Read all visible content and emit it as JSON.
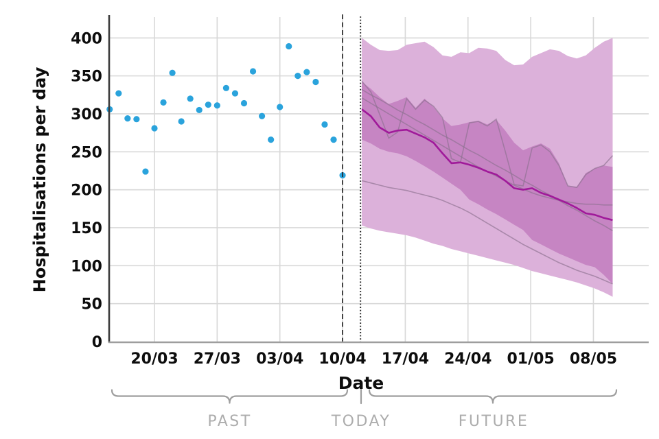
{
  "axes": {
    "y_label": "Hospitalisations per day",
    "x_label": "Date",
    "y_ticks": [
      0,
      50,
      100,
      150,
      200,
      250,
      300,
      350,
      400
    ],
    "x_ticks": [
      {
        "label": "20/03",
        "day": 5
      },
      {
        "label": "27/03",
        "day": 12
      },
      {
        "label": "03/04",
        "day": 19
      },
      {
        "label": "10/04",
        "day": 26
      },
      {
        "label": "17/04",
        "day": 33
      },
      {
        "label": "24/04",
        "day": 40
      },
      {
        "label": "01/05",
        "day": 47
      },
      {
        "label": "08/05",
        "day": 54
      }
    ],
    "y_range": [
      0,
      427
    ]
  },
  "annotations": {
    "past": "PAST",
    "today": "TODAY",
    "future": "FUTURE"
  },
  "colors": {
    "observed_point": "#2aa3dc",
    "outer_band": "#dcb1da",
    "inner_band": "#c685c3",
    "median_line": "#a01a9a",
    "trajectory_line": "#8d7190",
    "reference_line": "#262626",
    "gridline": "#d8d8d8",
    "axis_spine": "#3d3d3d",
    "bottom_axis": "#9e9e9e",
    "annotation_text": "#adadad",
    "brace": "#9e9e9e",
    "axis_text": "#0d0d0d"
  },
  "chart_data": {
    "type": "scatter+area-forecast",
    "x_unit": "days",
    "day0_date": "15/03",
    "grid": "on",
    "observed": {
      "name": "observed hospitalisations",
      "start_day": 0,
      "start_date": "15/03",
      "end_date": "10/04",
      "values": [
        306,
        327,
        294,
        293,
        224,
        281,
        315,
        354,
        290,
        320,
        305,
        312,
        311,
        334,
        327,
        314,
        356,
        297,
        266,
        309,
        389,
        350,
        355,
        342,
        286,
        266,
        219
      ]
    },
    "forecast": {
      "name": "forecast fan",
      "start_day": 28,
      "start_date": "12/04",
      "end_date": "10/05",
      "outer_band_top": [
        400,
        391,
        384,
        383,
        384,
        391,
        393,
        395,
        388,
        377,
        375,
        381,
        380,
        387,
        386,
        383,
        371,
        364,
        365,
        375,
        380,
        385,
        383,
        376,
        373,
        377,
        387,
        395,
        400
      ],
      "inner_band_top": [
        342,
        333,
        322,
        313,
        317,
        322,
        308,
        320,
        309,
        294,
        284,
        286,
        289,
        291,
        286,
        292,
        278,
        262,
        252,
        257,
        261,
        254,
        235,
        205,
        204,
        222,
        228,
        232,
        230
      ],
      "median": [
        306,
        297,
        282,
        275,
        278,
        279,
        274,
        269,
        262,
        248,
        235,
        236,
        233,
        229,
        224,
        220,
        212,
        202,
        200,
        202,
        196,
        192,
        187,
        182,
        176,
        169,
        167,
        163,
        160
      ],
      "inner_band_bottom": [
        266,
        261,
        254,
        250,
        248,
        244,
        238,
        231,
        224,
        216,
        208,
        200,
        187,
        181,
        174,
        168,
        161,
        154,
        147,
        134,
        128,
        122,
        116,
        111,
        106,
        101,
        98,
        88,
        76
      ],
      "outer_band_bottom": [
        153,
        149,
        146,
        144,
        142,
        140,
        137,
        133,
        129,
        126,
        122,
        119,
        116,
        113,
        110,
        107,
        104,
        101,
        97,
        93,
        90,
        87,
        84,
        81,
        78,
        74,
        70,
        65,
        59
      ],
      "trajectories": [
        [
          332,
          325,
          319,
          312,
          305,
          299,
          292,
          286,
          279,
          272,
          266,
          259,
          252,
          246,
          239,
          232,
          226,
          219,
          212,
          206,
          199,
          193,
          186,
          179,
          173,
          166,
          159,
          153,
          146
        ],
        [
          343,
          329,
          299,
          268,
          276,
          320,
          306,
          318,
          310,
          295,
          241,
          236,
          288,
          290,
          284,
          293,
          251,
          207,
          205,
          255,
          259,
          250,
          232,
          205,
          203,
          220,
          228,
          232,
          245
        ],
        [
          321,
          314,
          307,
          300,
          293,
          286,
          279,
          272,
          265,
          258,
          251,
          244,
          237,
          230,
          224,
          218,
          212,
          206,
          201,
          196,
          192,
          189,
          186,
          184,
          182,
          181,
          181,
          180,
          180
        ],
        [
          212,
          209,
          206,
          203,
          201,
          199,
          196,
          193,
          190,
          186,
          181,
          176,
          170,
          163,
          156,
          149,
          142,
          135,
          128,
          122,
          116,
          110,
          104,
          99,
          94,
          90,
          86,
          81,
          76
        ]
      ]
    },
    "markers": {
      "dashed_line_day": 26,
      "dashed_line_date": "10/04",
      "today_line_day": 28,
      "today_line_date": "12/04"
    }
  }
}
